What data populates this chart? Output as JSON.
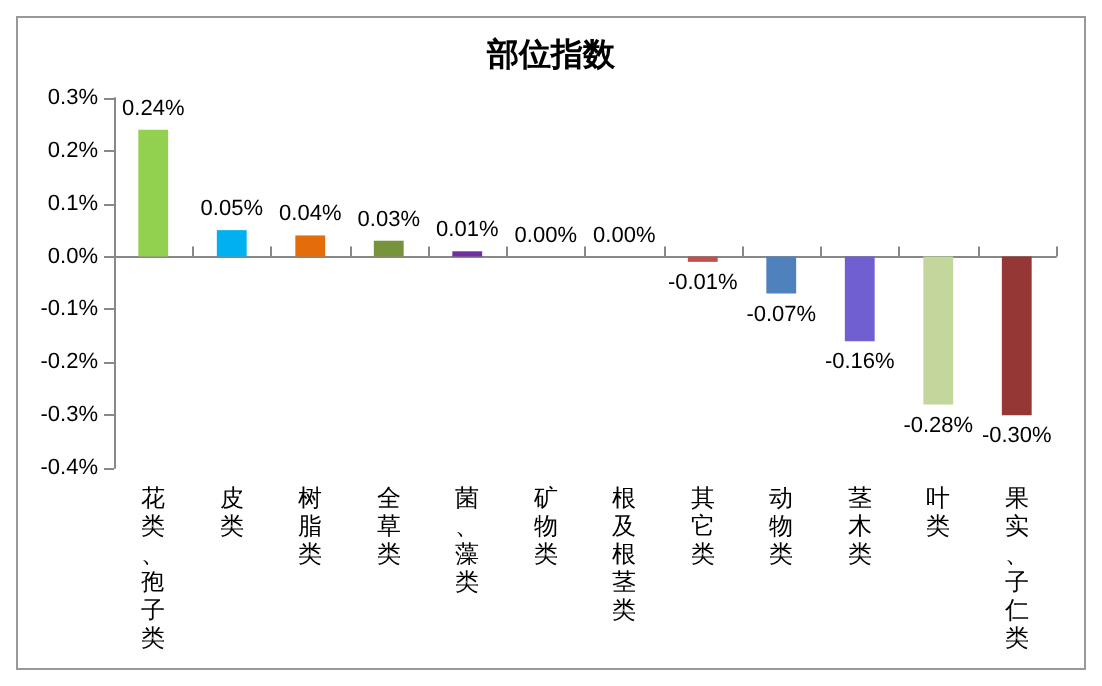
{
  "chart_data": {
    "type": "bar",
    "title": "部位指数",
    "categories": [
      "花类、孢子类",
      "皮类",
      "树脂类",
      "全草类",
      "菌、藻类",
      "矿物类",
      "根及根茎类",
      "其它类",
      "动物类",
      "茎木类",
      "叶类",
      "果实、子仁类"
    ],
    "values": [
      0.24,
      0.05,
      0.04,
      0.03,
      0.01,
      0.0,
      0.0,
      -0.01,
      -0.07,
      -0.16,
      -0.28,
      -0.3
    ],
    "colors": [
      "#92d050",
      "#00b0f0",
      "#e46c0a",
      "#77933c",
      "#7030a0",
      "#4bacc6",
      "#1f497d",
      "#c0504d",
      "#4f81bd",
      "#6f5fd0",
      "#c3d69b",
      "#953735"
    ],
    "value_labels": [
      "0.24%",
      "0.05%",
      "0.04%",
      "0.03%",
      "0.01%",
      "0.00%",
      "0.00%",
      "-0.01%",
      "-0.07%",
      "-0.16%",
      "-0.28%",
      "-0.30%"
    ],
    "ylim": [
      -0.4,
      0.3
    ],
    "yticks": [
      {
        "value": -0.4,
        "label": "-0.4%"
      },
      {
        "value": -0.3,
        "label": "-0.3%"
      },
      {
        "value": -0.2,
        "label": "-0.2%"
      },
      {
        "value": -0.1,
        "label": "-0.1%"
      },
      {
        "value": 0,
        "label": "0.0%"
      },
      {
        "value": 0.1,
        "label": "0.1%"
      },
      {
        "value": 0.2,
        "label": "0.2%"
      },
      {
        "value": 0.3,
        "label": "0.3%"
      }
    ],
    "ylabel": null
  }
}
